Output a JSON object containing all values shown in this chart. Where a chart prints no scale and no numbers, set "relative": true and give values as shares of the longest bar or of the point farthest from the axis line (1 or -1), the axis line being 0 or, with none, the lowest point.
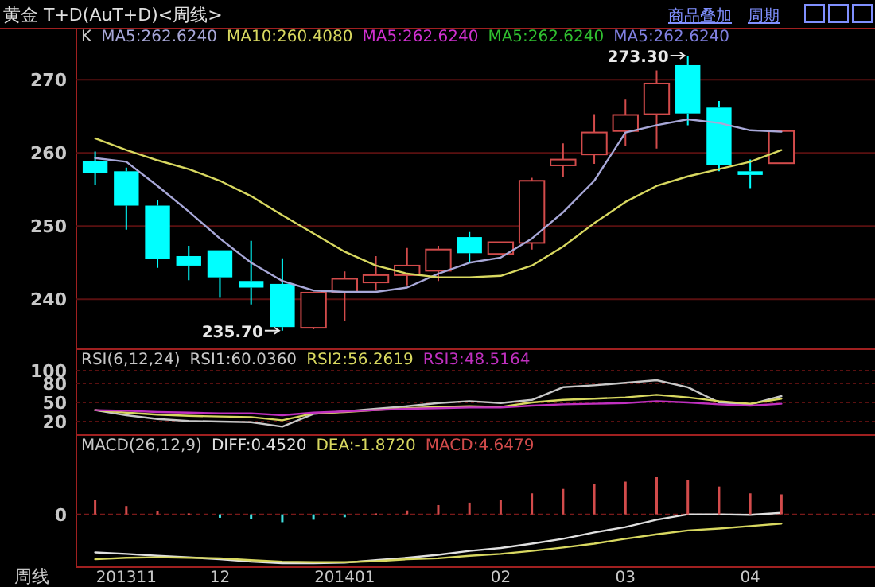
{
  "chart_data": [
    {
      "type": "candlestick",
      "title": "黄金 T+D(AuT+D)<周线>",
      "ohlc": [
        [
          258.9,
          260.2,
          255.6,
          257.3
        ],
        [
          257.5,
          258.0,
          249.5,
          252.8
        ],
        [
          252.8,
          253.5,
          244.3,
          245.5
        ],
        [
          245.9,
          247.3,
          242.6,
          244.6
        ],
        [
          246.7,
          246.7,
          240.2,
          243.0
        ],
        [
          242.5,
          248.0,
          239.3,
          241.6
        ],
        [
          242.1,
          245.6,
          235.7,
          236.2
        ],
        [
          236.1,
          240.9,
          235.9,
          240.9
        ],
        [
          241.0,
          243.8,
          237.0,
          242.8
        ],
        [
          242.3,
          245.9,
          241.2,
          243.3
        ],
        [
          243.3,
          247.0,
          241.9,
          244.6
        ],
        [
          243.9,
          247.3,
          242.5,
          246.8
        ],
        [
          248.5,
          249.2,
          245.0,
          246.3
        ],
        [
          246.2,
          247.8,
          246.0,
          247.8
        ],
        [
          247.7,
          256.6,
          246.8,
          256.2
        ],
        [
          258.3,
          261.3,
          256.7,
          259.1
        ],
        [
          259.8,
          265.3,
          258.5,
          262.8
        ],
        [
          263.0,
          267.3,
          260.9,
          265.2
        ],
        [
          265.3,
          271.3,
          260.6,
          269.5
        ],
        [
          272.0,
          273.3,
          263.8,
          265.4
        ],
        [
          266.2,
          267.1,
          257.5,
          258.3
        ],
        [
          257.5,
          259.1,
          255.2,
          257.0
        ],
        [
          258.6,
          263.0,
          258.6,
          263.0
        ]
      ],
      "colors": [
        "#00ffff",
        "#00ffff",
        "#00ffff",
        "#00ffff",
        "#00ffff",
        "#00ffff",
        "#00ffff",
        "#d24b4b",
        "#d24b4b",
        "#d24b4b",
        "#d24b4b",
        "#d24b4b",
        "#00ffff",
        "#d24b4b",
        "#d24b4b",
        "#d24b4b",
        "#d24b4b",
        "#d24b4b",
        "#d24b4b",
        "#00ffff",
        "#00ffff",
        "#00ffff",
        "#d24b4b"
      ],
      "series": [
        {
          "name": "MA5:262.6240",
          "type": "line",
          "color": "#a8a8d8",
          "values": [
            259.3,
            258.8,
            255.5,
            252.0,
            248.3,
            245.0,
            242.5,
            241.2,
            241.0,
            241.0,
            241.6,
            243.5,
            245.0,
            245.7,
            248.3,
            251.9,
            256.2,
            262.8,
            263.8,
            264.6,
            264.1,
            263.1,
            262.9
          ]
        },
        {
          "name": "MA10:260.4080",
          "type": "line",
          "color": "#d8d860",
          "values": [
            262.0,
            260.4,
            259.0,
            257.8,
            256.2,
            254.1,
            251.5,
            249.0,
            246.5,
            244.6,
            243.5,
            243.0,
            243.0,
            243.2,
            244.6,
            247.2,
            250.4,
            253.3,
            255.5,
            256.8,
            257.8,
            258.8,
            260.4
          ]
        }
      ],
      "ylim": [
        233.5,
        277
      ],
      "yticks": [
        240,
        250,
        260,
        270
      ],
      "grid": "y",
      "legend": "top left",
      "tick_labels": "y",
      "annotations": [
        "K",
        "MA5:262.6240",
        "MA5:262.6240",
        "MA5:262.6240",
        "商品叠加",
        "周期",
        "273.30",
        "235.70"
      ]
    },
    {
      "type": "line",
      "series": [
        {
          "name": "RSI1:60.0360",
          "color": "#c8c8c8",
          "values": [
            38,
            30,
            24,
            21,
            20,
            19,
            12,
            32,
            36,
            40,
            44,
            49,
            52,
            49,
            54,
            74,
            77,
            81,
            85,
            74,
            50,
            47,
            60
          ]
        },
        {
          "name": "RSI2:56.2619",
          "color": "#d8d860",
          "values": [
            38,
            34,
            31,
            29,
            28,
            27,
            22,
            33,
            35,
            38,
            41,
            43,
            44,
            43,
            50,
            54,
            56,
            58,
            62,
            58,
            52,
            48,
            56
          ]
        },
        {
          "name": "RSI3:48.5164",
          "color": "#c030c0",
          "values": [
            38,
            37,
            35,
            34,
            33,
            33,
            30,
            34,
            36,
            38,
            40,
            41,
            42,
            42,
            45,
            47,
            48,
            49,
            52,
            50,
            47,
            45,
            48
          ]
        }
      ],
      "ylim": [
        5,
        130
      ],
      "yticks": [
        20,
        50,
        80,
        100
      ],
      "grid": "y",
      "legend": "top left",
      "tick_labels": "y",
      "annotations": [
        "RSI(6,12,24)"
      ]
    },
    {
      "type": "bar",
      "relative": true,
      "xlabel": "周线",
      "categories": [
        null,
        "201311",
        null,
        null,
        "12",
        null,
        null,
        null,
        "201401",
        null,
        null,
        null,
        null,
        "02",
        null,
        null,
        null,
        "03",
        null,
        null,
        null,
        "04",
        null
      ],
      "series": [
        {
          "name": "DIFF:0.4520",
          "type": "line",
          "color": "#e0e0e0",
          "values": [
            -0.78,
            -0.81,
            -0.85,
            -0.88,
            -0.92,
            -0.97,
            -1,
            -1,
            -0.99,
            -0.94,
            -0.89,
            -0.83,
            -0.75,
            -0.69,
            -0.6,
            -0.5,
            -0.37,
            -0.26,
            -0.11,
            0,
            0,
            -0.01,
            0.03
          ]
        },
        {
          "name": "DEA:-1.8720",
          "type": "line",
          "color": "#d8d860",
          "values": [
            -0.92,
            -0.89,
            -0.88,
            -0.89,
            -0.9,
            -0.94,
            -0.97,
            -0.98,
            -0.98,
            -0.96,
            -0.92,
            -0.9,
            -0.85,
            -0.81,
            -0.75,
            -0.68,
            -0.6,
            -0.5,
            -0.41,
            -0.33,
            -0.29,
            -0.24,
            -0.19
          ]
        },
        {
          "name": "MACD:4.6479",
          "type": "bar",
          "color": "#d24b4b",
          "colors": [
            "#d24b4b",
            "#d24b4b",
            "#d24b4b",
            "#d24b4b",
            "#40e0e0",
            "#40e0e0",
            "#40e0e0",
            "#40e0e0",
            "#40e0e0",
            "#d24b4b",
            "#d24b4b",
            "#d24b4b",
            "#d24b4b",
            "#d24b4b",
            "#d24b4b",
            "#d24b4b",
            "#d24b4b",
            "#d24b4b",
            "#d24b4b",
            "#d24b4b",
            "#d24b4b",
            "#d24b4b",
            "#d24b4b"
          ],
          "values": [
            0.29,
            0.17,
            0.06,
            0.02,
            -0.07,
            -0.1,
            -0.16,
            -0.11,
            -0.06,
            0.02,
            0.08,
            0.19,
            0.24,
            0.3,
            0.43,
            0.52,
            0.62,
            0.67,
            0.76,
            0.71,
            0.57,
            0.43,
            0.41
          ]
        }
      ],
      "ref_lines": [
        {
          "axis": "y",
          "value": 0,
          "label": "0",
          "color": "#7a1a1a",
          "line_style": "dashed"
        }
      ],
      "legend": "top left",
      "annotations": [
        "MACD(26,12,9)"
      ]
    }
  ]
}
